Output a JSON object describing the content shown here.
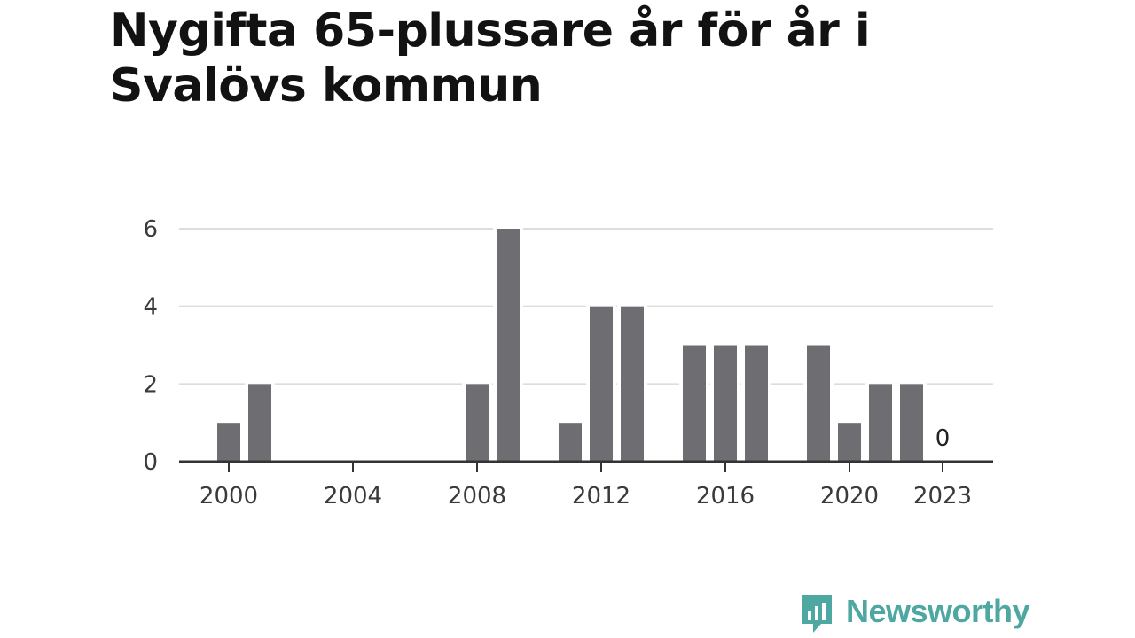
{
  "chart_data": {
    "type": "bar",
    "title": "Nygifta 65-plussare år för år i Svalövs kommun",
    "xlabel": "",
    "ylabel": "",
    "categories": [
      "2000",
      "2001",
      "2002",
      "2003",
      "2004",
      "2005",
      "2006",
      "2007",
      "2008",
      "2009",
      "2010",
      "2011",
      "2012",
      "2013",
      "2014",
      "2015",
      "2016",
      "2017",
      "2018",
      "2019",
      "2020",
      "2021",
      "2022",
      "2023"
    ],
    "values": [
      1,
      2,
      0,
      0,
      0,
      0,
      0,
      0,
      2,
      6,
      0,
      1,
      4,
      4,
      0,
      3,
      3,
      3,
      0,
      3,
      1,
      2,
      2,
      0
    ],
    "x_ticks": [
      "2000",
      "2004",
      "2008",
      "2012",
      "2016",
      "2020",
      "2023"
    ],
    "y_ticks": [
      0,
      2,
      4,
      6
    ],
    "ylim": [
      0,
      6
    ],
    "annotations": [
      {
        "category": "2023",
        "text": "0"
      }
    ],
    "grid": true,
    "colors": {
      "bar": "#6e6d72",
      "grid": "#dddddd",
      "axis": "#333333"
    }
  },
  "branding": {
    "name": "Newsworthy",
    "color": "#4fa7a1",
    "icon": "newsworthy-logo-icon"
  }
}
